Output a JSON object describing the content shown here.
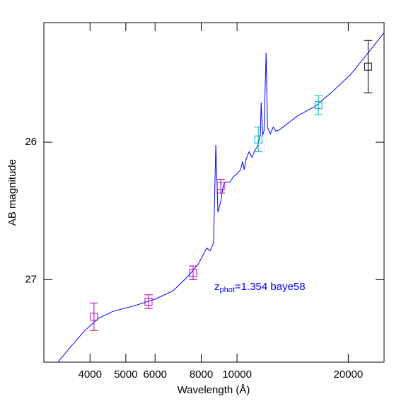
{
  "chart_data": {
    "type": "scatter",
    "xlabel": "Wavelength (Å)",
    "ylabel": "AB magnitude",
    "annotation": {
      "main": "z",
      "sub": "phot",
      "rest": "=1.354  baye58",
      "color": "#0000ff"
    },
    "xscale": "log",
    "xlim": [
      3000,
      25000
    ],
    "ylim": [
      27.6,
      25.13
    ],
    "xticks": [
      4000,
      5000,
      6000,
      8000,
      10000,
      20000
    ],
    "yticks": [
      26,
      27
    ],
    "model": {
      "color": "#0000ff",
      "x": [
        3273,
        3543,
        3871,
        4228,
        4618,
        5272,
        6020,
        6721,
        7338,
        7844,
        8127,
        8272,
        8456,
        8642,
        8760,
        8877,
        9035,
        9155,
        9277,
        9568,
        9781,
        10000,
        10224,
        10359,
        10452,
        10590,
        10779,
        10971,
        11166,
        11366,
        11570,
        11621,
        11724,
        11827,
        11985,
        12090,
        12306,
        12526,
        12749,
        13032,
        13321,
        14555,
        16251,
        18145,
        20261,
        22627,
        25053
      ],
      "values": [
        27.6,
        27.49,
        27.37,
        27.28,
        27.23,
        27.19,
        27.14,
        27.08,
        26.98,
        26.89,
        26.81,
        26.77,
        26.79,
        26.73,
        26.02,
        26.51,
        26.43,
        26.33,
        26.29,
        26.29,
        26.25,
        26.23,
        26.2,
        26.14,
        26.2,
        26.12,
        26.07,
        26.11,
        26.06,
        26.03,
        25.94,
        25.71,
        25.95,
        25.92,
        25.35,
        25.89,
        25.94,
        25.89,
        25.92,
        25.91,
        25.89,
        25.81,
        25.74,
        25.63,
        25.51,
        25.35,
        25.2
      ]
    },
    "points": {
      "x": [
        4100,
        5760,
        7605,
        9035,
        11415,
        16610,
        22630
      ],
      "values": [
        27.27,
        27.16,
        26.95,
        26.32,
        25.98,
        25.73,
        25.45
      ],
      "errors": [
        0.1,
        0.05,
        0.05,
        0.05,
        0.09,
        0.07,
        0.19
      ],
      "colors": [
        "#b000b0",
        "#b000b0",
        "#b000b0",
        "#b000b0",
        "#00b0c0",
        "#00b0c0",
        "#000000"
      ]
    }
  }
}
